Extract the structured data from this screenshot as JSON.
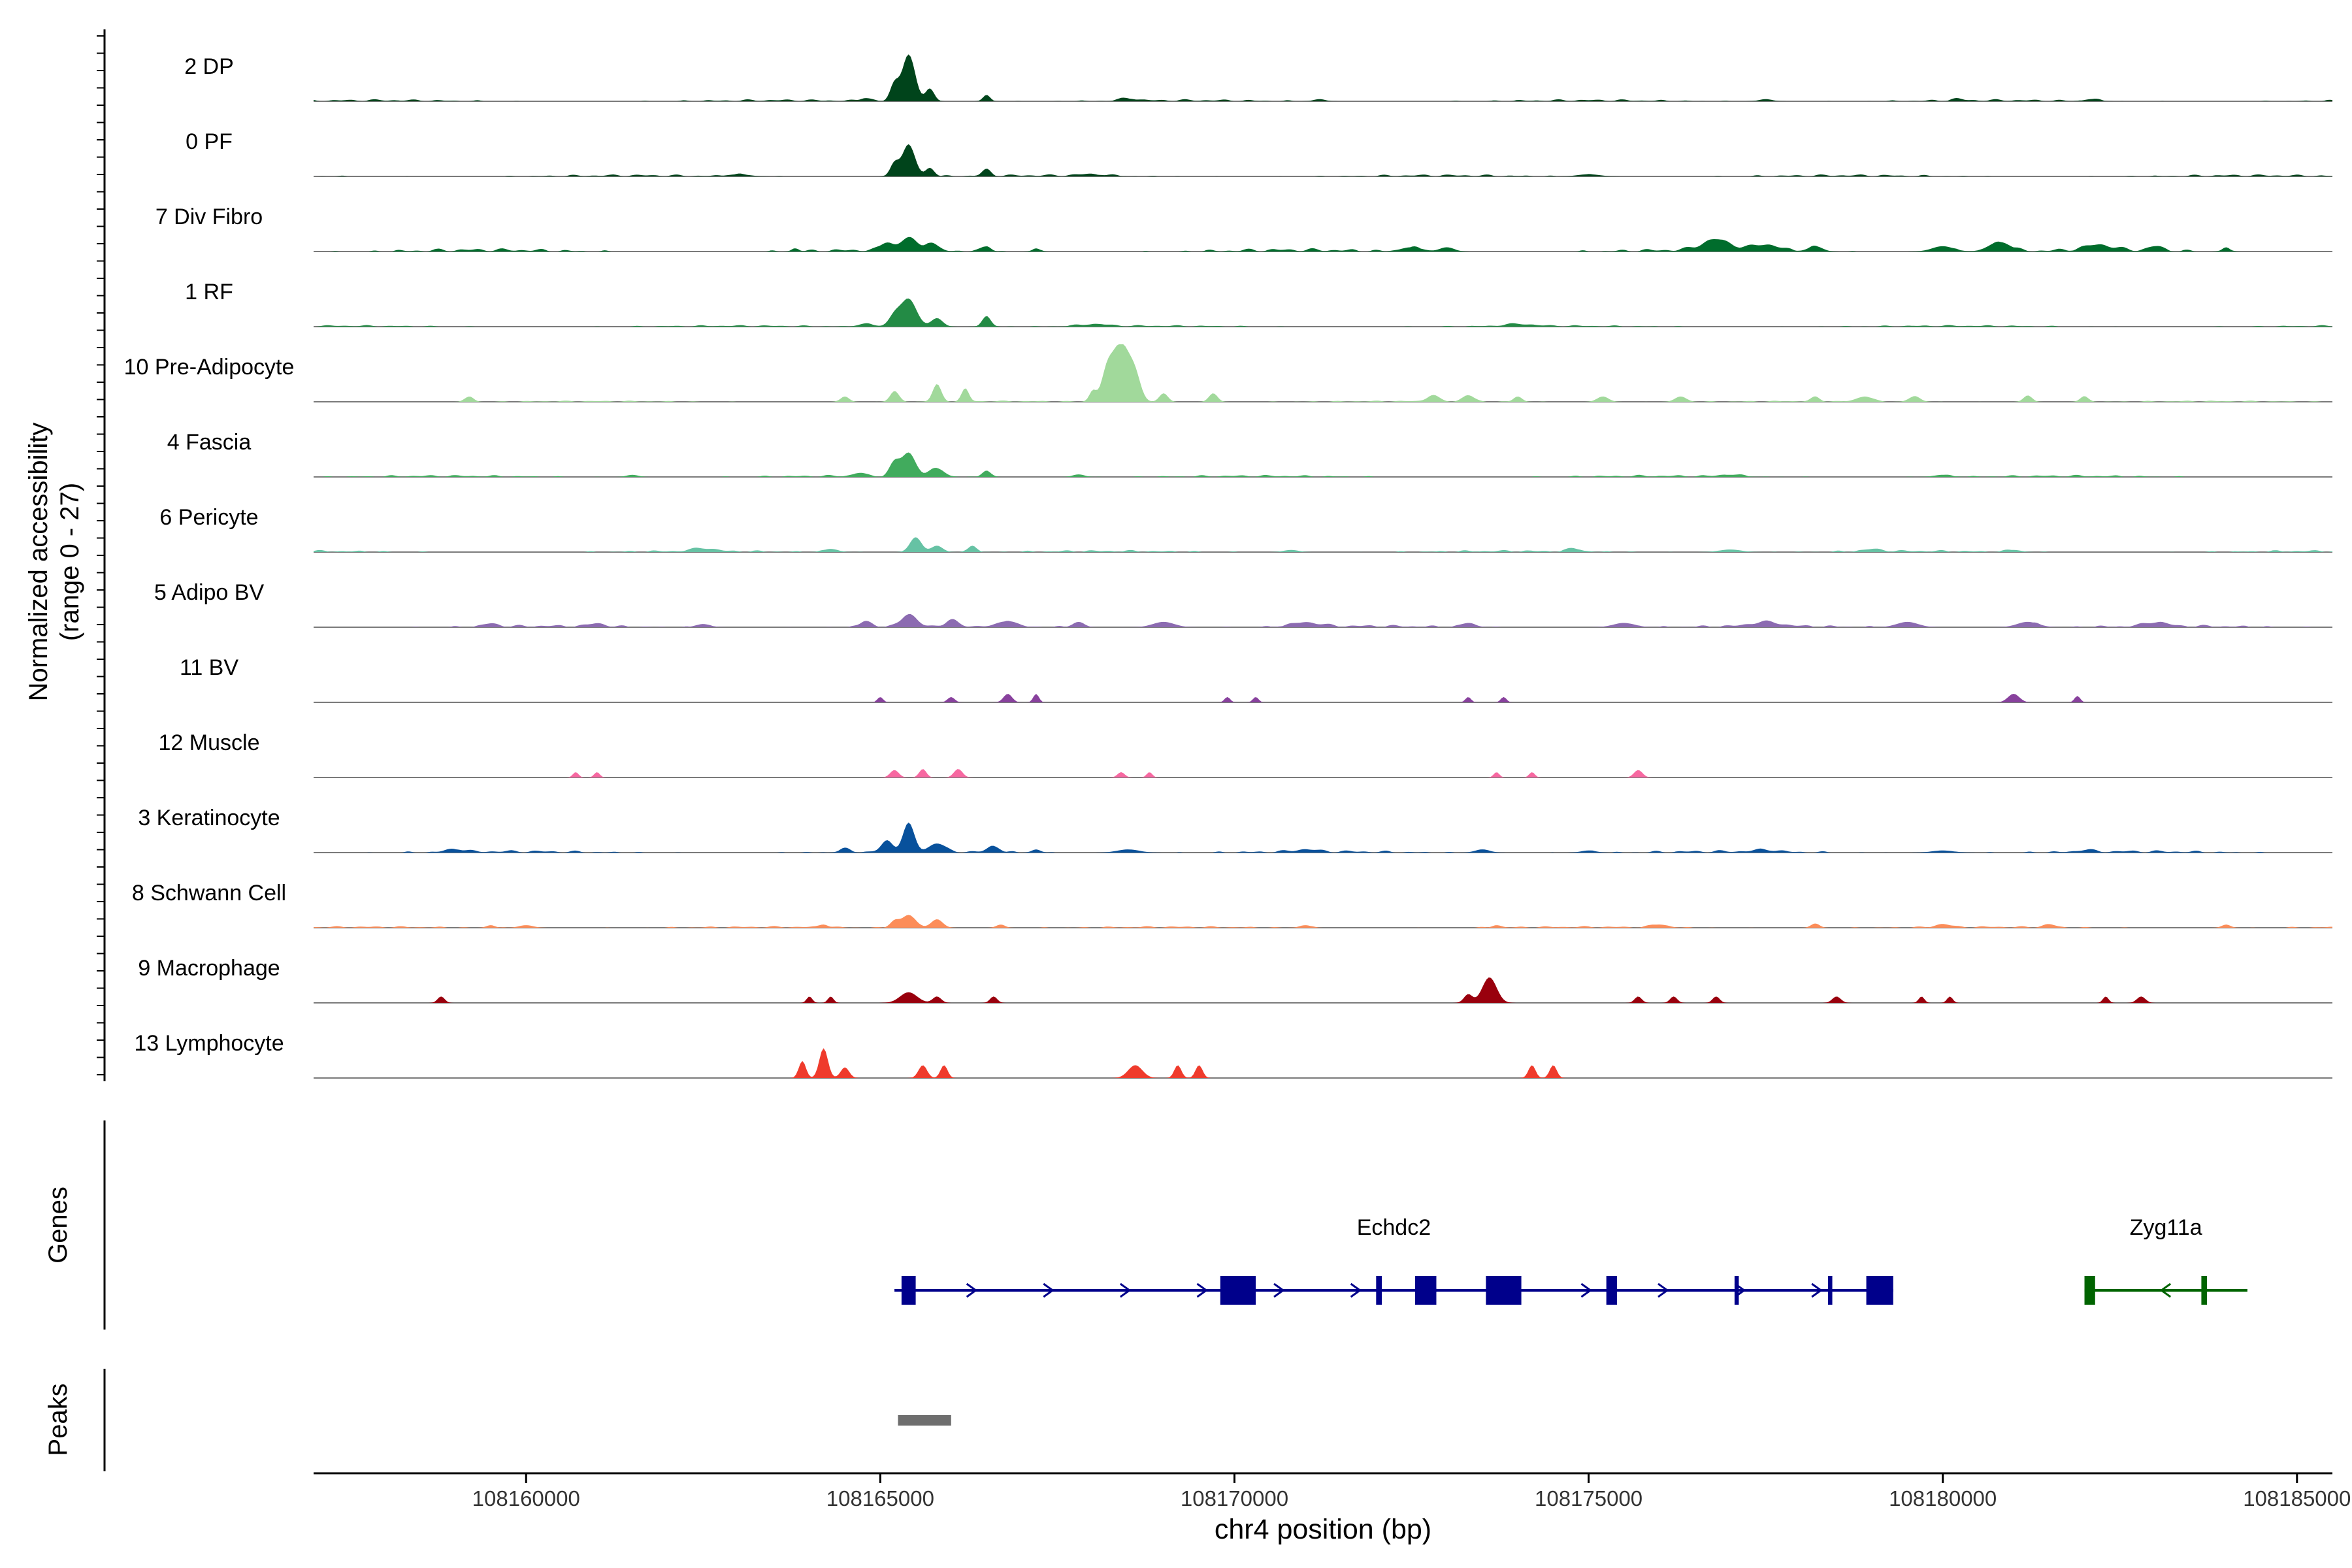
{
  "chart_data": {
    "type": "area",
    "title": "",
    "ylabel_line1": "Normalized accessibility",
    "ylabel_line2": "(range 0 - 27)",
    "xlabel": "chr4 position (bp)",
    "ylim": [
      0,
      27
    ],
    "xlim": [
      108157000,
      108185500
    ],
    "x_ticks": [
      108160000,
      108165000,
      108170000,
      108175000,
      108180000,
      108185000
    ],
    "x_tick_labels": [
      "108160000",
      "108165000",
      "108170000",
      "108175000",
      "108180000",
      "108185000"
    ],
    "genes_label": "Genes",
    "peaks_label": "Peaks",
    "series": [
      {
        "name": "2 DP",
        "color": "#00441b",
        "peaks": [
          [
            108165400,
            22,
            90
          ],
          [
            108165200,
            8,
            60
          ],
          [
            108165700,
            6,
            60
          ],
          [
            108166500,
            3,
            50
          ],
          [
            108164800,
            1.5,
            80
          ],
          [
            108168500,
            1.2,
            120
          ],
          [
            108171200,
            1,
            80
          ],
          [
            108177500,
            1,
            90
          ],
          [
            108180200,
            0.8,
            80
          ],
          [
            108182100,
            1,
            100
          ]
        ],
        "noise": 0.5
      },
      {
        "name": "0 PF",
        "color": "#00441b",
        "peaks": [
          [
            108165400,
            15,
            90
          ],
          [
            108165200,
            6,
            60
          ],
          [
            108165700,
            4,
            60
          ],
          [
            108166500,
            3,
            60
          ],
          [
            108163000,
            1,
            150
          ],
          [
            108168000,
            0.8,
            200
          ],
          [
            108175000,
            1,
            150
          ]
        ],
        "noise": 0.5
      },
      {
        "name": "7 Div Fibro",
        "color": "#006d2c",
        "peaks": [
          [
            108165400,
            6,
            100
          ],
          [
            108165100,
            4,
            80
          ],
          [
            108165700,
            4,
            80
          ],
          [
            108166500,
            2.5,
            60
          ],
          [
            108163800,
            1.5,
            50
          ],
          [
            108167200,
            1.5,
            50
          ],
          [
            108172500,
            2,
            150
          ],
          [
            108173000,
            2,
            100
          ],
          [
            108176800,
            5,
            200
          ],
          [
            108177500,
            3,
            200
          ],
          [
            108178200,
            2.5,
            100
          ],
          [
            108180000,
            2.5,
            150
          ],
          [
            108180800,
            4.5,
            150
          ],
          [
            108182200,
            2.5,
            200
          ],
          [
            108183000,
            2,
            100
          ],
          [
            108184000,
            1.5,
            60
          ]
        ],
        "noise": 0.8
      },
      {
        "name": "1 RF",
        "color": "#238b45",
        "peaks": [
          [
            108165400,
            13,
            110
          ],
          [
            108165200,
            5,
            80
          ],
          [
            108165800,
            4,
            80
          ],
          [
            108166500,
            5,
            60
          ],
          [
            108164800,
            1.5,
            100
          ],
          [
            108168000,
            1,
            200
          ],
          [
            108174000,
            1,
            200
          ]
        ],
        "noise": 0.4
      },
      {
        "name": "10 Pre-Adipocyte",
        "color": "#a1d99b",
        "peaks": [
          [
            108168400,
            27,
            120
          ],
          [
            108168200,
            12,
            80
          ],
          [
            108168600,
            10,
            80
          ],
          [
            108165800,
            8,
            60
          ],
          [
            108165200,
            5,
            60
          ],
          [
            108166200,
            6,
            50
          ],
          [
            108164500,
            2.5,
            60
          ],
          [
            108159200,
            2.5,
            60
          ],
          [
            108168000,
            5,
            50
          ],
          [
            108169000,
            4,
            60
          ],
          [
            108169700,
            4,
            60
          ],
          [
            108172800,
            3,
            80
          ],
          [
            108173300,
            3,
            80
          ],
          [
            108174000,
            2.5,
            60
          ],
          [
            108175200,
            2.5,
            80
          ],
          [
            108176300,
            2.5,
            80
          ],
          [
            108178200,
            2,
            60
          ],
          [
            108178900,
            2.5,
            100
          ],
          [
            108179600,
            2.5,
            80
          ],
          [
            108181200,
            3,
            60
          ],
          [
            108182000,
            2.5,
            60
          ]
        ],
        "noise": 0.3
      },
      {
        "name": "4 Fascia",
        "color": "#41ab5d",
        "peaks": [
          [
            108165400,
            11,
            100
          ],
          [
            108165200,
            6,
            70
          ],
          [
            108165800,
            4,
            100
          ],
          [
            108166500,
            3,
            60
          ],
          [
            108164700,
            1.5,
            80
          ],
          [
            108167800,
            1.2,
            80
          ],
          [
            108161500,
            1,
            80
          ],
          [
            108177000,
            1,
            150
          ],
          [
            108180000,
            1,
            120
          ]
        ],
        "noise": 0.5
      },
      {
        "name": "6 Pericyte",
        "color": "#66c2a4",
        "peaks": [
          [
            108165500,
            7,
            80
          ],
          [
            108165800,
            3,
            80
          ],
          [
            108166300,
            3,
            60
          ],
          [
            108164300,
            1.5,
            100
          ],
          [
            108162500,
            1.5,
            150
          ],
          [
            108170800,
            1,
            100
          ],
          [
            108174800,
            1.5,
            100
          ],
          [
            108177000,
            1.2,
            150
          ],
          [
            108179000,
            1,
            150
          ],
          [
            108181000,
            1,
            100
          ]
        ],
        "noise": 0.5
      },
      {
        "name": "5 Adipo BV",
        "color": "#8c6bb1",
        "peaks": [
          [
            108165400,
            6,
            100
          ],
          [
            108164800,
            3,
            80
          ],
          [
            108166000,
            3,
            80
          ],
          [
            108166800,
            3,
            100
          ],
          [
            108167800,
            2.5,
            80
          ],
          [
            108169000,
            2.5,
            150
          ],
          [
            108171000,
            2,
            200
          ],
          [
            108173300,
            2,
            100
          ],
          [
            108175500,
            2,
            150
          ],
          [
            108177500,
            2,
            200
          ],
          [
            108179500,
            2.5,
            150
          ],
          [
            108181200,
            2.5,
            150
          ],
          [
            108183000,
            2,
            150
          ],
          [
            108159500,
            1.5,
            100
          ],
          [
            108161000,
            1.5,
            100
          ],
          [
            108162500,
            1.5,
            100
          ]
        ],
        "noise": 0.6
      },
      {
        "name": "11 BV",
        "color": "#88419d",
        "peaks": [
          [
            108165000,
            2.5,
            40
          ],
          [
            108166000,
            2.5,
            50
          ],
          [
            108166800,
            4,
            60
          ],
          [
            108167200,
            4,
            40
          ],
          [
            108169900,
            2.5,
            40
          ],
          [
            108170300,
            2.5,
            40
          ],
          [
            108173300,
            2.5,
            40
          ],
          [
            108173800,
            2.5,
            40
          ],
          [
            108181000,
            4,
            80
          ],
          [
            108181900,
            3,
            40
          ]
        ],
        "noise": 0
      },
      {
        "name": "12 Muscle",
        "color": "#f768a1",
        "peaks": [
          [
            108160700,
            2.5,
            40
          ],
          [
            108161000,
            2.5,
            40
          ],
          [
            108165200,
            3.5,
            60
          ],
          [
            108165600,
            4,
            50
          ],
          [
            108166100,
            4,
            60
          ],
          [
            108168400,
            2.5,
            50
          ],
          [
            108168800,
            2.5,
            40
          ],
          [
            108173700,
            2.5,
            40
          ],
          [
            108174200,
            2.5,
            40
          ],
          [
            108175700,
            3.5,
            60
          ]
        ],
        "noise": 0
      },
      {
        "name": "3 Keratinocyte",
        "color": "#08519c",
        "peaks": [
          [
            108165400,
            13,
            80
          ],
          [
            108165100,
            5,
            80
          ],
          [
            108165800,
            4,
            100
          ],
          [
            108166600,
            3,
            80
          ],
          [
            108167200,
            1.5,
            60
          ],
          [
            108164500,
            1.5,
            80
          ],
          [
            108159000,
            1.5,
            120
          ],
          [
            108168500,
            1.5,
            150
          ],
          [
            108171000,
            1,
            150
          ],
          [
            108173500,
            1.5,
            100
          ],
          [
            108175000,
            1,
            100
          ],
          [
            108177500,
            1,
            150
          ],
          [
            108180000,
            1,
            150
          ],
          [
            108182000,
            1,
            100
          ]
        ],
        "noise": 0.6
      },
      {
        "name": "8 Schwann Cell",
        "color": "#fc8d59",
        "peaks": [
          [
            108165400,
            6,
            100
          ],
          [
            108165800,
            4,
            80
          ],
          [
            108165200,
            3,
            60
          ],
          [
            108164200,
            1.5,
            60
          ],
          [
            108166700,
            1.5,
            60
          ],
          [
            108160000,
            1.2,
            100
          ],
          [
            108159500,
            1.2,
            60
          ],
          [
            108171000,
            1.2,
            80
          ],
          [
            108173700,
            1.2,
            60
          ],
          [
            108176000,
            1.5,
            120
          ],
          [
            108178200,
            2,
            60
          ],
          [
            108180000,
            1.5,
            100
          ],
          [
            108181500,
            1.5,
            80
          ],
          [
            108184000,
            1.5,
            60
          ]
        ],
        "noise": 0.4
      },
      {
        "name": "9 Macrophage",
        "color": "#99000d",
        "peaks": [
          [
            108173600,
            12,
            100
          ],
          [
            108173300,
            4,
            60
          ],
          [
            108165400,
            5,
            120
          ],
          [
            108165800,
            3,
            60
          ],
          [
            108164300,
            3,
            40
          ],
          [
            108164000,
            3,
            40
          ],
          [
            108158800,
            3,
            50
          ],
          [
            108166600,
            3,
            50
          ],
          [
            108175700,
            3,
            50
          ],
          [
            108176200,
            3,
            50
          ],
          [
            108176800,
            3,
            50
          ],
          [
            108178500,
            3,
            60
          ],
          [
            108179700,
            3,
            40
          ],
          [
            108180100,
            3,
            40
          ],
          [
            108182300,
            3,
            40
          ],
          [
            108182800,
            3,
            60
          ]
        ],
        "noise": 0
      },
      {
        "name": "13 Lymphocyte",
        "color": "#ef3b2c",
        "peaks": [
          [
            108164200,
            14,
            60
          ],
          [
            108164500,
            5,
            60
          ],
          [
            108163900,
            8,
            50
          ],
          [
            108165600,
            6,
            60
          ],
          [
            108165900,
            6,
            50
          ],
          [
            108168600,
            6,
            100
          ],
          [
            108169200,
            6,
            50
          ],
          [
            108169500,
            6,
            50
          ],
          [
            108174200,
            6,
            50
          ],
          [
            108174500,
            6,
            50
          ]
        ],
        "noise": 0
      }
    ],
    "genes": [
      {
        "name": "Echdc2",
        "color": "#00008b",
        "start": 108165200,
        "end": 108179300,
        "strand": "+",
        "exons": [
          [
            108165300,
            108165500
          ],
          [
            108169800,
            108170300
          ],
          [
            108172000,
            108172080
          ],
          [
            108172550,
            108172850
          ],
          [
            108173550,
            108174050
          ],
          [
            108175250,
            108175400
          ],
          [
            108177060,
            108177120
          ],
          [
            108178380,
            108178440
          ],
          [
            108178920,
            108179300
          ]
        ]
      },
      {
        "name": "Zyg11a",
        "color": "#006400",
        "start": 108182000,
        "end": 108184300,
        "strand": "-",
        "exons": [
          [
            108182000,
            108182150
          ],
          [
            108183650,
            108183730
          ]
        ]
      }
    ],
    "peaks_regions": [
      [
        108165250,
        108166000
      ]
    ],
    "peak_color": "#6e6e6e"
  }
}
